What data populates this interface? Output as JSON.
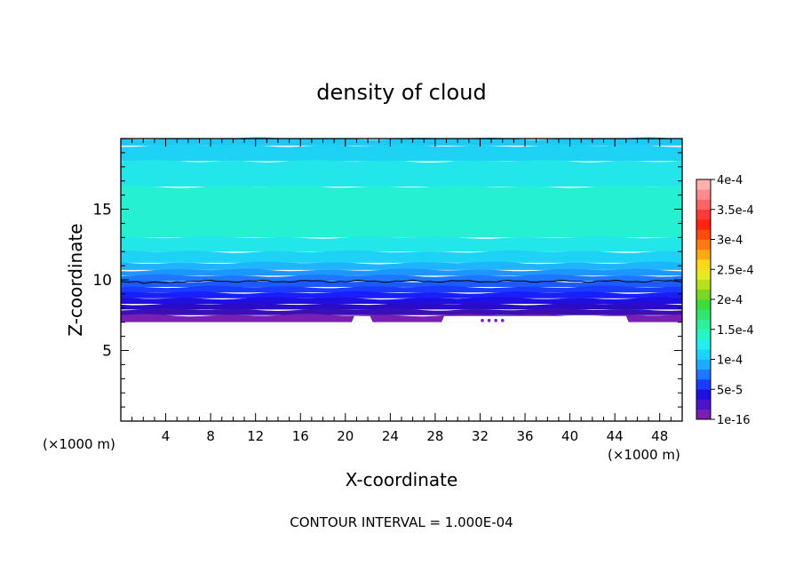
{
  "chart_data": {
    "type": "contour",
    "title": "density of cloud",
    "xlabel": "X-coordinate",
    "ylabel": "Z-coordinate",
    "x_unit": "(×1000 m)",
    "z_unit": "(×1000 m)",
    "xlim": [
      0,
      50
    ],
    "ylim": [
      0,
      20
    ],
    "xticks": [
      4,
      8,
      12,
      16,
      20,
      24,
      28,
      32,
      36,
      40,
      44,
      48
    ],
    "yticks": [
      5,
      10,
      15
    ],
    "footer": "CONTOUR INTERVAL = 1.000E-04",
    "colorbar": {
      "labels": [
        "1e-16",
        "5e-5",
        "1e-4",
        "1.5e-4",
        "2e-4",
        "2.5e-4",
        "3e-4",
        "3.5e-4",
        "4e-4"
      ],
      "colors": [
        "#7a1fb4",
        "#4b14c8",
        "#1f0fe0",
        "#1a3cff",
        "#1e78ff",
        "#1eaaff",
        "#1ed2ff",
        "#22eeee",
        "#26f5c6",
        "#2ef09c",
        "#30e66e",
        "#3ddc3c",
        "#7ad822",
        "#b4e01c",
        "#e6ea1e",
        "#ffd81c",
        "#ffaa14",
        "#ff7a10",
        "#ff4a0e",
        "#ff2410",
        "#ff3838",
        "#ff6464",
        "#ff8c8c",
        "#ffb0b0"
      ]
    },
    "field_bands": [
      {
        "z0": 19.5,
        "z1": 20.0,
        "color": "#1ec8f5"
      },
      {
        "z0": 18.4,
        "z1": 19.5,
        "color": "#1ed2f5"
      },
      {
        "z0": 16.6,
        "z1": 18.4,
        "color": "#22e6ea"
      },
      {
        "z0": 13.0,
        "z1": 16.6,
        "color": "#26f0d2"
      },
      {
        "z0": 12.0,
        "z1": 13.0,
        "color": "#22e6ea"
      },
      {
        "z0": 11.2,
        "z1": 12.0,
        "color": "#1ed2f5"
      },
      {
        "z0": 10.7,
        "z1": 11.2,
        "color": "#1eb4ff"
      },
      {
        "z0": 10.3,
        "z1": 10.7,
        "color": "#1e96ff"
      },
      {
        "z0": 9.9,
        "z1": 10.3,
        "color": "#1e78ff"
      },
      {
        "z0": 9.5,
        "z1": 9.9,
        "color": "#1a5aff"
      },
      {
        "z0": 9.1,
        "z1": 9.5,
        "color": "#1a3cff"
      },
      {
        "z0": 8.7,
        "z1": 9.1,
        "color": "#1a1efa"
      },
      {
        "z0": 8.3,
        "z1": 8.7,
        "color": "#1f0fe0"
      },
      {
        "z0": 7.9,
        "z1": 8.3,
        "color": "#2a0cc8"
      },
      {
        "z0": 7.5,
        "z1": 7.9,
        "color": "#3a10b4"
      },
      {
        "z0": 7.0,
        "z1": 7.5,
        "color": "#7a1fb4"
      }
    ],
    "contour_line_z": 9.9,
    "cloud_base_z": 7.0,
    "cloud_base_gaps": [
      [
        20.8,
        22.2
      ],
      [
        28.8,
        45.0
      ]
    ]
  }
}
